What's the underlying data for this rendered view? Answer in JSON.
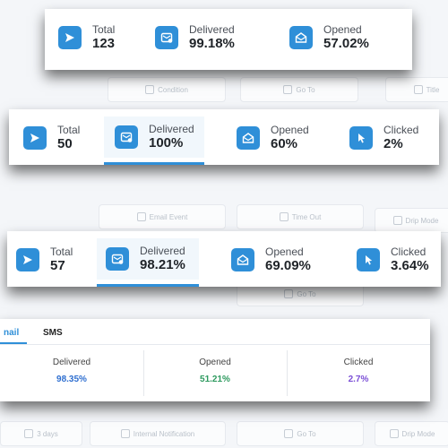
{
  "background": {
    "nodes": [
      "Condition",
      "Go To",
      "Title",
      "Email Event",
      "Time Out",
      "Drip Mode",
      "Go To",
      "3 days",
      "Internal Notification",
      "Go To",
      "Drip Mode"
    ]
  },
  "card1": {
    "stats": [
      {
        "label": "Total",
        "value": "123",
        "icon": "send-icon"
      },
      {
        "label": "Delivered",
        "value": "99.18%",
        "icon": "delivered-icon"
      },
      {
        "label": "Opened",
        "value": "57.02%",
        "icon": "opened-icon"
      }
    ]
  },
  "card2": {
    "stats": [
      {
        "label": "Total",
        "value": "50",
        "icon": "send-icon"
      },
      {
        "label": "Delivered",
        "value": "100%",
        "icon": "delivered-icon"
      },
      {
        "label": "Opened",
        "value": "60%",
        "icon": "opened-icon"
      },
      {
        "label": "Clicked",
        "value": "2%",
        "icon": "clicked-icon"
      }
    ]
  },
  "card3": {
    "stats": [
      {
        "label": "Total",
        "value": "57",
        "icon": "send-icon"
      },
      {
        "label": "Delivered",
        "value": "98.21%",
        "icon": "delivered-icon"
      },
      {
        "label": "Opened",
        "value": "69.09%",
        "icon": "opened-icon"
      },
      {
        "label": "Clicked",
        "value": "3.64%",
        "icon": "clicked-icon"
      }
    ]
  },
  "card4": {
    "tabs": [
      "nail",
      "SMS"
    ],
    "columns": [
      {
        "label": "Delivered",
        "value": "98.35%",
        "color": "#2f6fd0"
      },
      {
        "label": "Opened",
        "value": "51.21%",
        "color": "#2e9a5f"
      },
      {
        "label": "Clicked",
        "value": "2.7%",
        "color": "#7b4fd6"
      }
    ]
  },
  "colors": {
    "accent": "#2f8fd8"
  }
}
